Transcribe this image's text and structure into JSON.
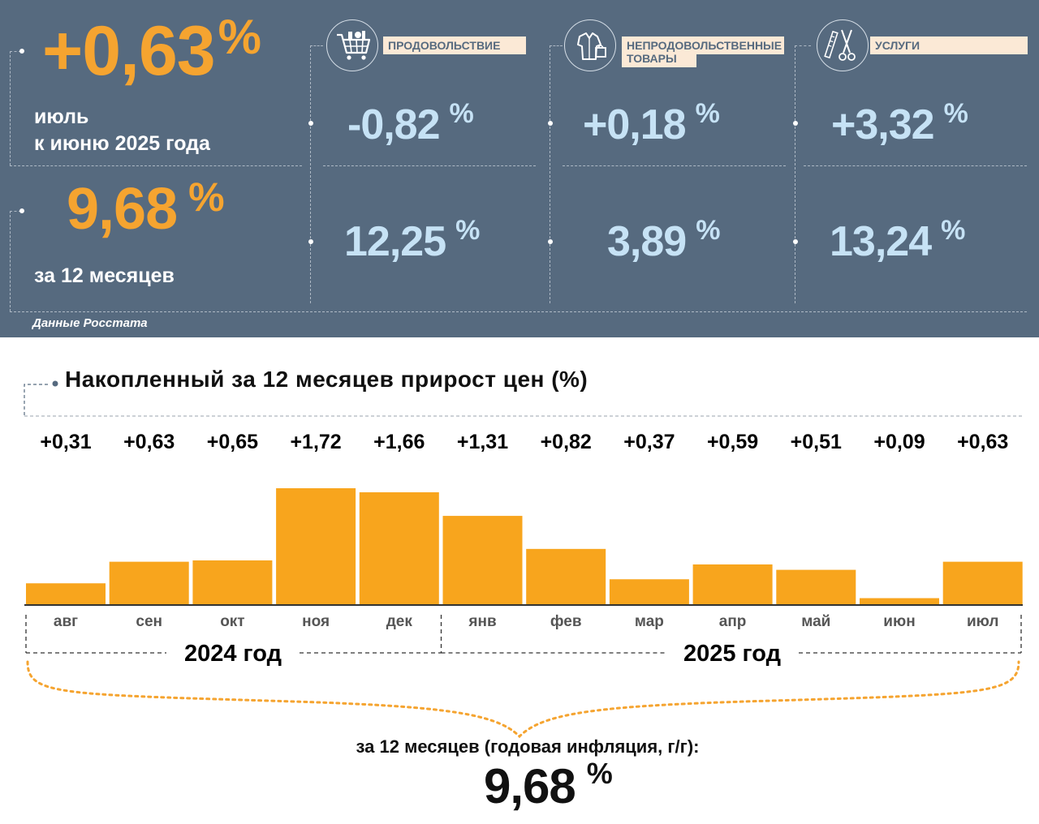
{
  "summary": {
    "month_value": "+0,63",
    "month_pct": "%",
    "month_caption_1": "июль",
    "month_caption_2": "к июню 2025 года",
    "year_value": "9,68",
    "year_pct": "%",
    "year_caption": "за 12 месяцев",
    "source": "Данные Росстата"
  },
  "categories": [
    {
      "icon": "shopping-cart-icon",
      "label": "ПРОДОВОЛЬСТВИЕ",
      "month": "-0,82",
      "year": "12,25",
      "pct": "%"
    },
    {
      "icon": "clothing-icon",
      "label": "НЕПРОДОВОЛЬСТВЕННЫЕ ТОВАРЫ",
      "label_line1": "НЕПРОДОВОЛЬСТВЕННЫЕ",
      "label_line2": "ТОВАРЫ",
      "month": "+0,18",
      "year": "3,89",
      "pct": "%"
    },
    {
      "icon": "scissors-comb-icon",
      "label": "УСЛУГИ",
      "month": "+3,32",
      "year": "13,24",
      "pct": "%"
    }
  ],
  "chart_data": {
    "type": "bar",
    "title": "Накопленный за 12 месяцев прирост цен (%)",
    "categories": [
      "авг",
      "сен",
      "окт",
      "ноя",
      "дек",
      "янв",
      "фев",
      "мар",
      "апр",
      "май",
      "июн",
      "июл"
    ],
    "values": [
      0.31,
      0.63,
      0.65,
      1.72,
      1.66,
      1.31,
      0.82,
      0.37,
      0.59,
      0.51,
      0.09,
      0.63
    ],
    "value_labels": [
      "+0,31",
      "+0,63",
      "+0,65",
      "+1,72",
      "+1,66",
      "+1,31",
      "+0,82",
      "+0,37",
      "+0,59",
      "+0,51",
      "+0,09",
      "+0,63"
    ],
    "ylim": [
      0,
      1.72
    ],
    "groups": [
      {
        "label": "2024 год",
        "from": 0,
        "to": 4
      },
      {
        "label": "2025 год",
        "from": 5,
        "to": 11
      }
    ],
    "bar_color": "#f8a51d",
    "grid": false
  },
  "annual": {
    "label": "за 12 месяцев (годовая инфляция, г/г):",
    "value": "9,68",
    "pct": "%"
  }
}
